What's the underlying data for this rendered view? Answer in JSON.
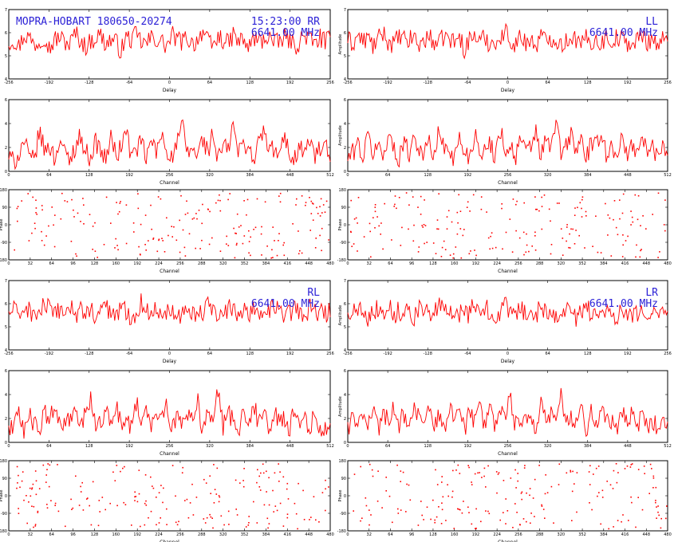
{
  "header": {
    "left_title": "MOPRA-HOBART 180650-20274",
    "time_pol_RR": "15:23:00  RR",
    "freq_RR": "6641.00 MHz",
    "pol_LL": "LL",
    "freq_LL": "6641.00 MHz",
    "pol_RL": "RL",
    "freq_RL": "6641.00 MHz",
    "pol_LR": "LR",
    "freq_LR": "6641.00 MHz"
  },
  "colors": {
    "trace": "#ff0000",
    "annotation": "#2a1fd6",
    "axis": "#000000"
  },
  "chart_data": [
    {
      "id": "RR-delay",
      "type": "line",
      "xlabel": "Delay",
      "ylabel": "",
      "xlim": [
        -256,
        256
      ],
      "ylim": [
        4,
        7
      ],
      "xticks": [
        "-256",
        "-192",
        "-128",
        "-64",
        "0",
        "64",
        "128",
        "192",
        "256"
      ],
      "yticks": [
        "4",
        "5",
        "6",
        "7"
      ],
      "npoints": 256,
      "series": [
        {
          "values": [
            5.6,
            5.7,
            5.4,
            5.9,
            5.8,
            5.5,
            5.6,
            5.9,
            5.3,
            5.7,
            5.8,
            5.6,
            5.5,
            6.0,
            5.7,
            5.4,
            5.6,
            5.8,
            5.9,
            5.5,
            5.7,
            5.6,
            5.2,
            5.8,
            5.7,
            5.9,
            5.6,
            5.5,
            5.8,
            5.7,
            5.6,
            5.4,
            5.9,
            5.7,
            5.6,
            5.8,
            5.5,
            5.7,
            6.1,
            5.6,
            5.4,
            5.8,
            5.7,
            5.5,
            5.9,
            5.6,
            5.7,
            5.3,
            5.8,
            5.6,
            5.7,
            5.9,
            5.5,
            5.6,
            5.8,
            5.7,
            5.4,
            5.6,
            5.9,
            5.7,
            5.5,
            5.8,
            5.6,
            5.7
          ]
        }
      ]
    },
    {
      "id": "LL-delay",
      "type": "line",
      "xlabel": "Delay",
      "ylabel": "Amplitude",
      "xlim": [
        -256,
        256
      ],
      "ylim": [
        4,
        7
      ],
      "xticks": [
        "-256",
        "-192",
        "-128",
        "-64",
        "0",
        "64",
        "128",
        "192",
        "256"
      ],
      "yticks": [
        "4",
        "5",
        "6",
        "7"
      ],
      "npoints": 256,
      "series": [
        {
          "values": [
            5.7,
            5.5,
            5.9,
            5.6,
            5.8,
            5.4,
            5.7,
            6.0,
            5.6,
            5.5,
            5.8,
            5.7,
            5.6,
            5.9,
            5.4,
            5.7,
            5.8,
            5.6,
            5.5,
            5.9,
            5.7,
            5.6,
            5.8,
            5.3,
            5.7,
            5.9,
            5.6,
            5.8,
            5.5,
            5.7,
            5.6,
            6.1,
            5.7,
            5.5,
            5.8,
            5.6,
            5.7,
            5.4,
            5.9,
            5.6,
            5.8,
            5.7,
            5.5,
            5.6,
            5.9,
            5.7,
            5.4,
            5.8,
            5.6,
            5.7,
            5.5,
            5.9,
            5.6,
            5.8,
            5.7,
            5.6,
            5.4,
            5.7,
            5.9,
            5.6,
            5.8,
            5.5,
            5.7,
            5.6
          ]
        }
      ]
    },
    {
      "id": "RR-channel",
      "type": "line",
      "xlabel": "Channel",
      "ylabel": "",
      "xlim": [
        0,
        512
      ],
      "ylim": [
        0,
        6
      ],
      "xticks": [
        "0",
        "64",
        "128",
        "192",
        "256",
        "320",
        "384",
        "448",
        "512"
      ],
      "yticks": [
        "0",
        "2",
        "4",
        "6"
      ],
      "npoints": 256,
      "series": [
        {
          "values": [
            1.2,
            0.8,
            1.5,
            2.6,
            1.1,
            0.9,
            3.4,
            1.7,
            2.2,
            1.0,
            2.8,
            1.4,
            0.9,
            2.1,
            3.0,
            1.6,
            1.2,
            2.5,
            1.8,
            0.9,
            2.9,
            1.3,
            2.0,
            3.6,
            1.1,
            1.9,
            2.4,
            1.0,
            2.7,
            1.5,
            3.2,
            1.8,
            1.1,
            2.3,
            3.9,
            1.4,
            2.0,
            1.2,
            2.8,
            1.6,
            3.1,
            0.9,
            2.2,
            1.7,
            4.1,
            1.3,
            2.6,
            1.9,
            1.0,
            2.4,
            3.5,
            1.5,
            2.0,
            1.1,
            2.9,
            1.6,
            1.0,
            2.3,
            1.4,
            2.7,
            1.2,
            1.8,
            2.1,
            0.9
          ]
        }
      ]
    },
    {
      "id": "LL-channel",
      "type": "line",
      "xlabel": "Channel",
      "ylabel": "Amplitude",
      "xlim": [
        0,
        512
      ],
      "ylim": [
        0,
        6
      ],
      "xticks": [
        "0",
        "64",
        "128",
        "192",
        "256",
        "320",
        "384",
        "448",
        "512"
      ],
      "yticks": [
        "0",
        "2",
        "4",
        "6"
      ],
      "npoints": 256,
      "series": [
        {
          "values": [
            1.0,
            1.6,
            2.4,
            1.1,
            3.0,
            1.5,
            2.2,
            1.2,
            3.3,
            1.8,
            1.0,
            2.7,
            1.4,
            3.1,
            2.0,
            1.3,
            2.6,
            1.1,
            3.5,
            1.7,
            2.1,
            1.0,
            2.8,
            1.6,
            1.2,
            3.2,
            2.0,
            1.4,
            2.5,
            1.1,
            3.8,
            1.6,
            2.3,
            1.0,
            2.9,
            1.5,
            2.0,
            3.4,
            1.2,
            2.6,
            1.8,
            4.4,
            1.3,
            2.2,
            3.1,
            1.6,
            2.8,
            1.1,
            2.4,
            1.9,
            3.6,
            1.2,
            2.0,
            1.5,
            2.9,
            1.0,
            2.3,
            1.7,
            3.0,
            1.4,
            2.1,
            1.1,
            2.5,
            1.6
          ]
        }
      ]
    },
    {
      "id": "RR-phase",
      "type": "scatter",
      "xlabel": "Channel",
      "ylabel": "Phase",
      "xlim": [
        0,
        512
      ],
      "ylim": [
        -180,
        180
      ],
      "xticks": [
        "0",
        "32",
        "64",
        "96",
        "128",
        "160",
        "192",
        "224",
        "256",
        "288",
        "320",
        "352",
        "384",
        "416",
        "448",
        "480"
      ],
      "yticks": [
        "-180",
        "-90",
        "0",
        "90",
        "180"
      ],
      "npoints": 200
    },
    {
      "id": "LL-phase",
      "type": "scatter",
      "xlabel": "Channel",
      "ylabel": "Phase",
      "xlim": [
        0,
        512
      ],
      "ylim": [
        -180,
        180
      ],
      "xticks": [
        "0",
        "32",
        "64",
        "96",
        "128",
        "160",
        "192",
        "224",
        "256",
        "288",
        "320",
        "352",
        "384",
        "416",
        "448",
        "480"
      ],
      "yticks": [
        "-180",
        "-90",
        "0",
        "90",
        "180"
      ],
      "npoints": 200
    },
    {
      "id": "RL-delay",
      "type": "line",
      "xlabel": "Delay",
      "ylabel": "",
      "xlim": [
        -256,
        256
      ],
      "ylim": [
        4,
        7
      ],
      "xticks": [
        "-256",
        "-192",
        "-128",
        "-64",
        "0",
        "64",
        "128",
        "192",
        "256"
      ],
      "yticks": [
        "4",
        "5",
        "6",
        "7"
      ],
      "npoints": 256,
      "series": [
        {
          "values": [
            5.6,
            5.8,
            5.4,
            5.9,
            5.7,
            5.5,
            5.6,
            6.0,
            5.7,
            5.4,
            5.8,
            5.6,
            5.9,
            5.5,
            5.7,
            5.6,
            5.8,
            5.3,
            5.7,
            5.9,
            5.6,
            5.5,
            5.8,
            5.7,
            5.4,
            5.6,
            6.1,
            5.7,
            5.5,
            5.8,
            5.6,
            5.7,
            5.9,
            5.4,
            5.6,
            5.8,
            5.7,
            5.5,
            5.6,
            5.9,
            5.7,
            5.6,
            5.4,
            5.8,
            5.7,
            5.5,
            5.9,
            5.6,
            5.8,
            5.7,
            5.4,
            5.6,
            5.9,
            5.7,
            5.5,
            5.6,
            5.8,
            5.7,
            5.4,
            5.9,
            5.6,
            5.7,
            5.5,
            5.8
          ]
        }
      ]
    },
    {
      "id": "LR-delay",
      "type": "line",
      "xlabel": "Delay",
      "ylabel": "Amplitude",
      "xlim": [
        -256,
        256
      ],
      "ylim": [
        4,
        7
      ],
      "xticks": [
        "-256",
        "-192",
        "-128",
        "-64",
        "0",
        "64",
        "128",
        "192",
        "256"
      ],
      "yticks": [
        "4",
        "5",
        "6",
        "7"
      ],
      "npoints": 256,
      "series": [
        {
          "values": [
            5.5,
            5.8,
            5.6,
            5.9,
            5.4,
            5.7,
            5.8,
            5.6,
            6.0,
            5.5,
            5.7,
            5.6,
            5.9,
            5.4,
            5.8,
            5.7,
            5.5,
            5.6,
            5.9,
            5.7,
            5.4,
            5.8,
            5.6,
            5.7,
            5.5,
            6.1,
            5.6,
            5.8,
            5.7,
            5.4,
            5.6,
            5.9,
            5.7,
            5.5,
            5.8,
            5.6,
            5.7,
            5.4,
            5.9,
            5.6,
            5.8,
            5.5,
            5.7,
            5.6,
            5.9,
            5.4,
            5.7,
            5.8,
            5.6,
            5.5,
            5.9,
            5.7,
            5.6,
            5.4,
            5.8,
            5.7,
            5.5,
            5.6,
            5.9,
            5.7,
            5.4,
            5.8,
            5.6,
            5.3
          ]
        }
      ]
    },
    {
      "id": "RL-channel",
      "type": "line",
      "xlabel": "Channel",
      "ylabel": "",
      "xlim": [
        0,
        512
      ],
      "ylim": [
        0,
        6
      ],
      "xticks": [
        "0",
        "64",
        "128",
        "192",
        "256",
        "320",
        "384",
        "448",
        "512"
      ],
      "yticks": [
        "0",
        "2",
        "4",
        "6"
      ],
      "npoints": 256,
      "series": [
        {
          "values": [
            1.1,
            1.6,
            2.2,
            0.9,
            2.8,
            1.4,
            1.0,
            2.5,
            1.7,
            3.1,
            1.2,
            2.0,
            1.5,
            2.9,
            1.0,
            2.3,
            3.6,
            1.4,
            1.9,
            2.6,
            1.1,
            3.0,
            1.7,
            2.2,
            1.3,
            3.5,
            1.8,
            2.4,
            1.0,
            2.9,
            1.6,
            3.2,
            1.2,
            2.1,
            1.5,
            2.7,
            1.9,
            3.4,
            1.1,
            2.3,
            1.6,
            4.2,
            1.3,
            2.6,
            1.8,
            1.0,
            2.9,
            1.4,
            3.0,
            1.7,
            2.2,
            1.2,
            2.5,
            1.5,
            1.9,
            0.9,
            2.8,
            1.3,
            2.0,
            1.1,
            2.4,
            0.8,
            1.5,
            1.0
          ]
        }
      ]
    },
    {
      "id": "LR-channel",
      "type": "line",
      "xlabel": "Channel",
      "ylabel": "Amplitude",
      "xlim": [
        0,
        512
      ],
      "ylim": [
        0,
        6
      ],
      "xticks": [
        "0",
        "64",
        "128",
        "192",
        "256",
        "320",
        "384",
        "448",
        "512"
      ],
      "yticks": [
        "0",
        "2",
        "4",
        "6"
      ],
      "npoints": 256,
      "series": [
        {
          "values": [
            1.3,
            2.0,
            1.1,
            2.7,
            1.6,
            3.0,
            1.2,
            2.3,
            1.8,
            3.4,
            1.0,
            2.5,
            1.5,
            2.9,
            1.9,
            1.1,
            3.2,
            1.6,
            2.2,
            1.3,
            2.8,
            1.7,
            3.5,
            1.2,
            2.4,
            1.8,
            2.9,
            1.4,
            3.1,
            1.0,
            2.6,
            1.9,
            3.7,
            1.3,
            2.1,
            1.6,
            2.8,
            1.1,
            3.3,
            1.7,
            2.4,
            1.2,
            4.0,
            1.5,
            2.2,
            1.8,
            3.0,
            1.1,
            2.6,
            1.4,
            3.3,
            1.6,
            2.0,
            1.2,
            2.9,
            1.5,
            2.3,
            1.0,
            2.7,
            1.4,
            1.9,
            1.1,
            2.2,
            1.3
          ]
        }
      ]
    },
    {
      "id": "RL-phase",
      "type": "scatter",
      "xlabel": "Channel",
      "ylabel": "Phase",
      "xlim": [
        0,
        512
      ],
      "ylim": [
        -180,
        180
      ],
      "xticks": [
        "0",
        "32",
        "64",
        "96",
        "128",
        "160",
        "192",
        "224",
        "256",
        "288",
        "320",
        "352",
        "384",
        "416",
        "448",
        "480"
      ],
      "yticks": [
        "-180",
        "-90",
        "0",
        "90",
        "180"
      ],
      "npoints": 200
    },
    {
      "id": "LR-phase",
      "type": "scatter",
      "xlabel": "Channel",
      "ylabel": "Phase",
      "xlim": [
        0,
        512
      ],
      "ylim": [
        -180,
        180
      ],
      "xticks": [
        "0",
        "32",
        "64",
        "96",
        "128",
        "160",
        "192",
        "224",
        "256",
        "288",
        "320",
        "352",
        "384",
        "416",
        "448",
        "480"
      ],
      "yticks": [
        "-180",
        "-90",
        "0",
        "90",
        "180"
      ],
      "npoints": 200
    }
  ]
}
